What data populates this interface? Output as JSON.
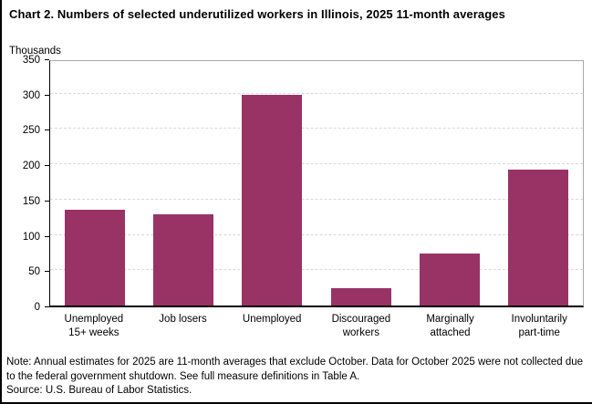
{
  "title": "Chart 2. Numbers of selected underutilized workers in Illinois, 2025 11-month averages",
  "chart_data": {
    "type": "bar",
    "title": "Chart 2. Numbers of selected underutilized workers in Illinois, 2025 11-month averages",
    "units_label": "Thousands",
    "categories": [
      "Unemployed\n15+ weeks",
      "Job losers",
      "Unemployed",
      "Discouraged\nworkers",
      "Marginally\nattached",
      "Involuntarily\npart-time"
    ],
    "values": [
      135,
      129,
      298,
      24,
      73,
      193
    ],
    "xlabel": "",
    "ylabel": "Thousands",
    "ylim": [
      0,
      350
    ],
    "ytick_step": 50,
    "grid": "horizontal-dashed",
    "legend": "none",
    "bar_color": "#993366",
    "gridline_color": "#d9d9d9",
    "frame_color": "#a6a6a6",
    "axis_color": "#000000"
  },
  "note": "Note:  Annual estimates for 2025 are 11-month averages that exclude October. Data for October 2025 were not collected due to the federal government  shutdown. See full measure definitions in Table A.",
  "source": "Source: U.S. Bureau of Labor Statistics."
}
